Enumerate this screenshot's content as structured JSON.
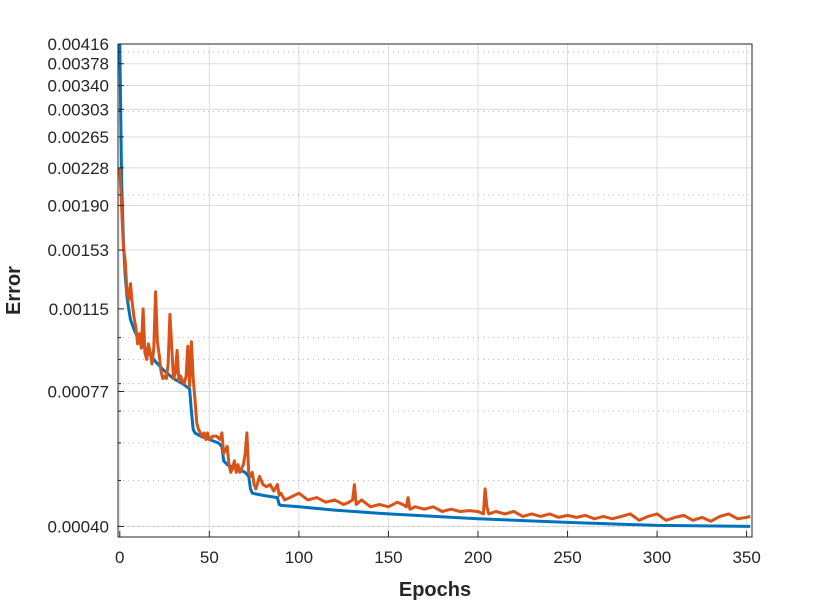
{
  "chart_data": {
    "type": "line",
    "xlabel": "Epochs",
    "ylabel": "Error",
    "xlim": [
      -1,
      353
    ],
    "ylim": [
      0.00038,
      0.00416
    ],
    "y_scale": "log",
    "grid": true,
    "x_ticks": [
      0,
      50,
      100,
      150,
      200,
      250,
      300,
      350
    ],
    "x_tick_labels": [
      "0",
      "50",
      "100",
      "150",
      "200",
      "250",
      "300",
      "350"
    ],
    "y_ticks": [
      0.0004,
      0.00077,
      0.00115,
      0.00153,
      0.0019,
      0.00228,
      0.00265,
      0.00303,
      0.0034,
      0.00378,
      0.00416
    ],
    "y_tick_labels": [
      "0.00040",
      "0.00077",
      "0.00115",
      "0.00153",
      "0.00190",
      "0.00228",
      "0.00265",
      "0.00303",
      "0.00340",
      "0.00378",
      "0.00416"
    ],
    "series": [
      {
        "color": "#0072BD",
        "x": [
          0,
          1,
          2,
          3,
          4,
          5,
          6,
          8,
          10,
          12,
          15,
          20,
          25,
          30,
          35,
          39,
          40,
          41,
          42,
          45,
          50,
          55,
          57,
          58,
          60,
          65,
          70,
          72,
          73,
          74,
          80,
          88,
          89,
          90,
          100,
          120,
          150,
          200,
          250,
          300,
          352
        ],
        "y": [
          0.00416,
          0.00215,
          0.0016,
          0.00135,
          0.00122,
          0.00115,
          0.00109,
          0.00104,
          0.001,
          0.00097,
          0.00094,
          0.00089,
          0.00085,
          0.00082,
          0.0008,
          0.00078,
          0.0007,
          0.00064,
          0.00063,
          0.00062,
          0.00061,
          0.0006,
          0.00059,
          0.00055,
          0.00054,
          0.00053,
          0.00052,
          0.00051,
          0.00048,
          0.00047,
          0.000465,
          0.00046,
          0.000445,
          0.000443,
          0.00044,
          0.000433,
          0.000425,
          0.000415,
          0.000408,
          0.000402,
          0.0004
        ]
      },
      {
        "color": "#D95319",
        "x": [
          0,
          1,
          2,
          3,
          4,
          5,
          6,
          7,
          8,
          9,
          10,
          11,
          12,
          13,
          14,
          15,
          16,
          17,
          18,
          19,
          20,
          21,
          22,
          23,
          24,
          25,
          26,
          27,
          28,
          30,
          31,
          32,
          33,
          34,
          35,
          36,
          37,
          38,
          39,
          40,
          41,
          42,
          43,
          44,
          45,
          46,
          47,
          48,
          49,
          50,
          52,
          54,
          56,
          57,
          58,
          59,
          60,
          61,
          62,
          63,
          64,
          65,
          66,
          67,
          68,
          69,
          70,
          71,
          72,
          73,
          74,
          75,
          76,
          78,
          80,
          82,
          84,
          86,
          88,
          89,
          90,
          92,
          95,
          100,
          105,
          110,
          115,
          120,
          125,
          128,
          130,
          131,
          132,
          135,
          140,
          145,
          150,
          155,
          158,
          160,
          161,
          162,
          165,
          170,
          175,
          180,
          185,
          190,
          195,
          200,
          203,
          204,
          205,
          206,
          210,
          215,
          220,
          225,
          230,
          235,
          240,
          245,
          250,
          255,
          260,
          265,
          270,
          275,
          280,
          285,
          290,
          295,
          300,
          305,
          310,
          315,
          320,
          325,
          330,
          335,
          340,
          345,
          350,
          352
        ],
        "y": [
          0.00228,
          0.0019,
          0.00155,
          0.00145,
          0.00125,
          0.0012,
          0.0013,
          0.00118,
          0.0011,
          0.00105,
          0.00097,
          0.00102,
          0.00095,
          0.00115,
          0.00093,
          0.0009,
          0.00097,
          0.00093,
          0.00088,
          0.00095,
          0.00125,
          0.00098,
          0.00092,
          0.00085,
          0.00082,
          0.00083,
          0.00082,
          0.00088,
          0.00112,
          0.00082,
          0.00084,
          0.00094,
          0.00081,
          0.00083,
          0.00081,
          0.0008,
          0.00083,
          0.00096,
          0.00079,
          0.00098,
          0.00082,
          0.00074,
          0.00066,
          0.00064,
          0.00063,
          0.00062,
          0.00063,
          0.00061,
          0.00063,
          0.00061,
          0.00062,
          0.00062,
          0.00061,
          0.00063,
          0.00057,
          0.00058,
          0.00059,
          0.00054,
          0.00052,
          0.00053,
          0.00055,
          0.00052,
          0.00054,
          0.00052,
          0.00053,
          0.00054,
          0.00057,
          0.00063,
          0.00052,
          0.00051,
          0.00052,
          0.00049,
          0.00048,
          0.00051,
          0.00049,
          0.000485,
          0.00049,
          0.000475,
          0.00049,
          0.000465,
          0.00047,
          0.000455,
          0.00046,
          0.00047,
          0.000455,
          0.00046,
          0.00045,
          0.000455,
          0.000445,
          0.00045,
          0.000455,
          0.00049,
          0.000445,
          0.000455,
          0.00044,
          0.000445,
          0.00044,
          0.00045,
          0.000445,
          0.00044,
          0.00046,
          0.000435,
          0.00044,
          0.000435,
          0.00044,
          0.00043,
          0.000435,
          0.00043,
          0.000432,
          0.00043,
          0.000425,
          0.00048,
          0.00044,
          0.000425,
          0.00043,
          0.000425,
          0.00043,
          0.00042,
          0.000425,
          0.00042,
          0.000425,
          0.000418,
          0.000422,
          0.000418,
          0.000422,
          0.000415,
          0.00042,
          0.000415,
          0.00042,
          0.000425,
          0.000412,
          0.00042,
          0.000425,
          0.000412,
          0.000418,
          0.000422,
          0.000412,
          0.000418,
          0.00041,
          0.00042,
          0.000425,
          0.000415,
          0.000418,
          0.00042
        ]
      }
    ]
  }
}
